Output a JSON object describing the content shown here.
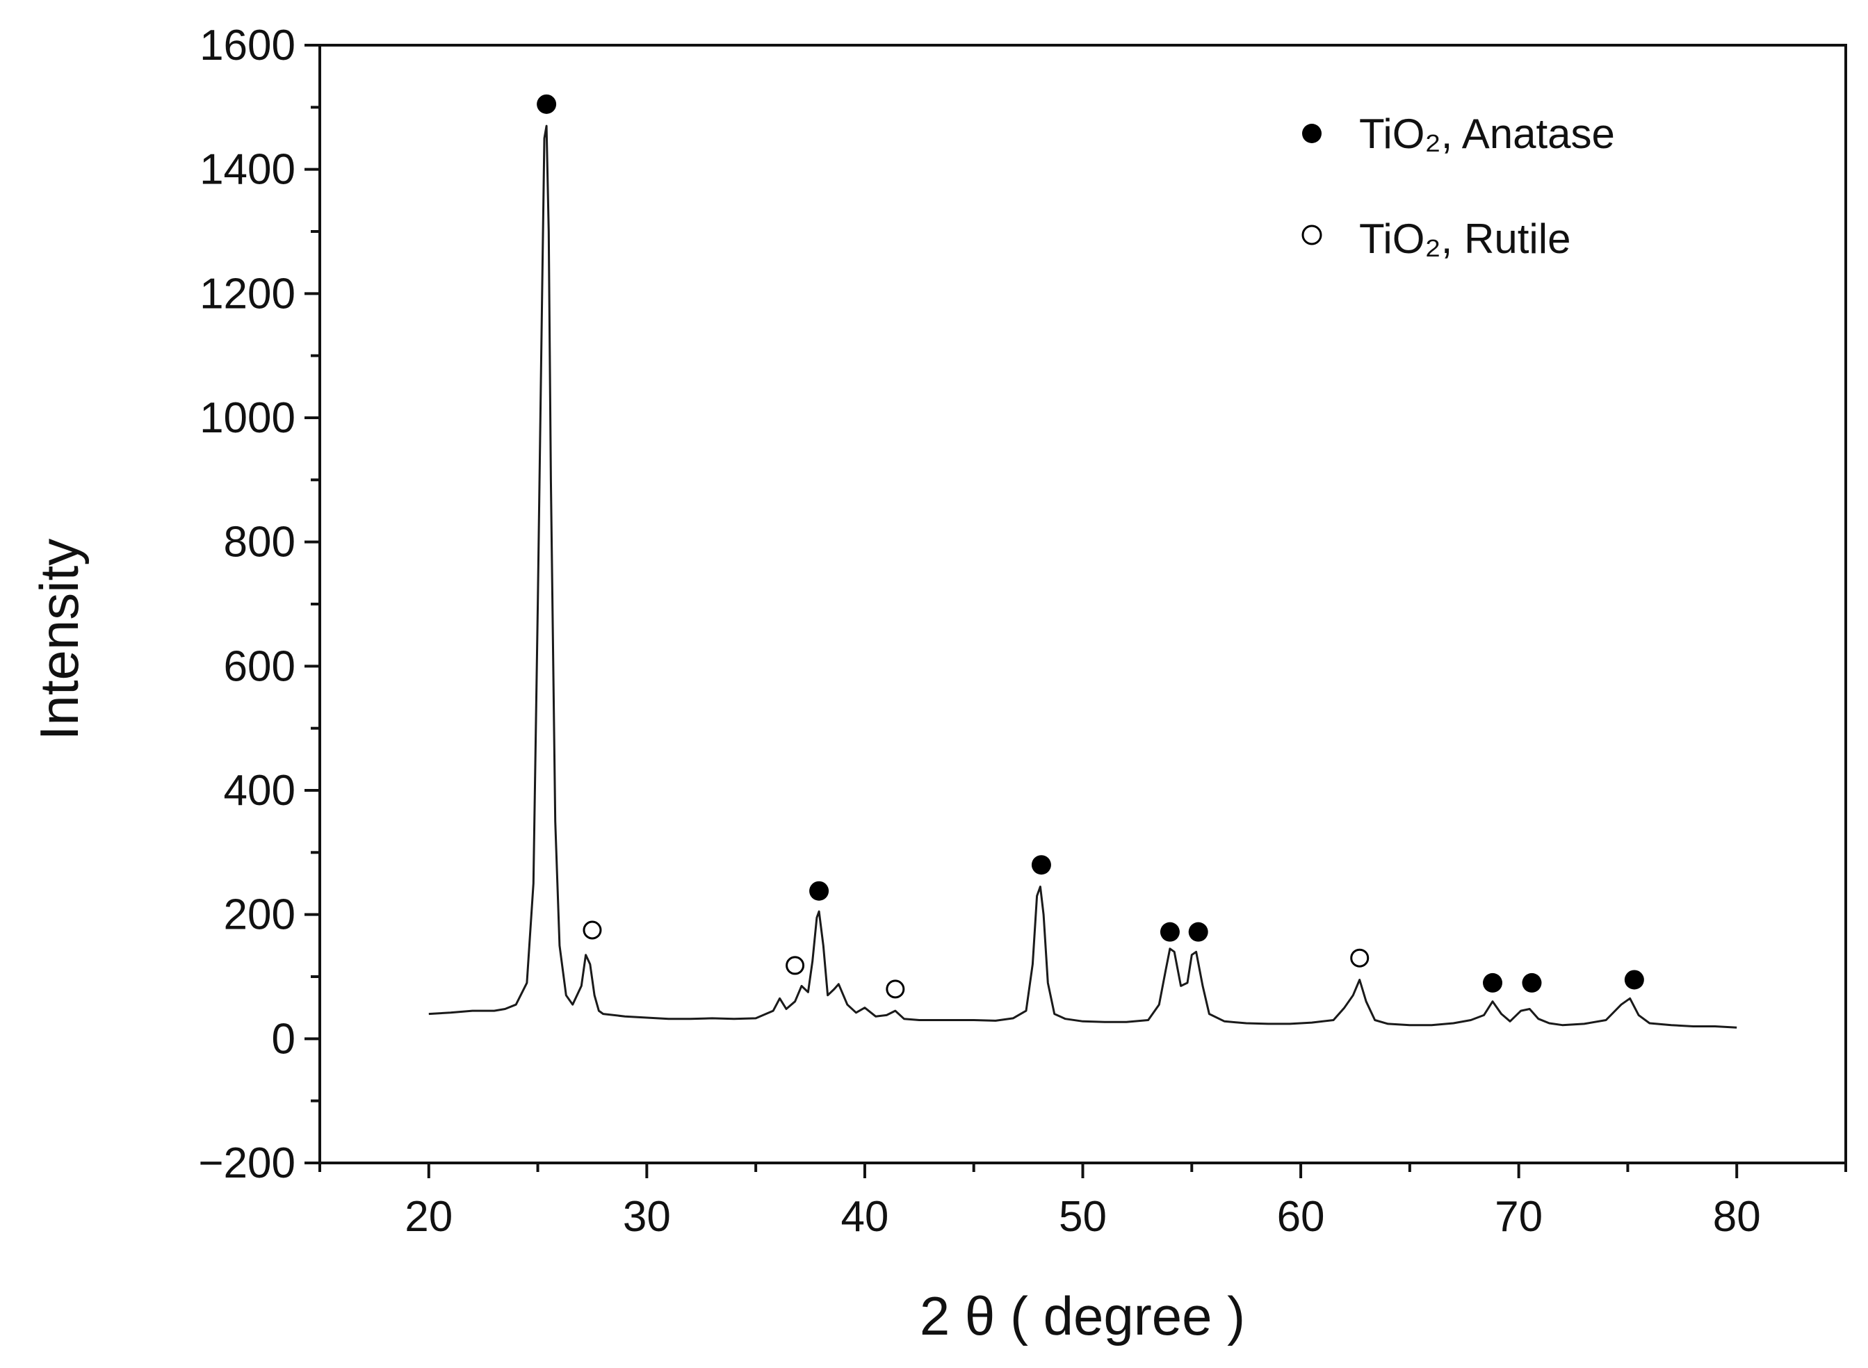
{
  "chart_data": {
    "type": "line",
    "title": "",
    "xlabel": "2 θ ( degree )",
    "ylabel": "Intensity",
    "xlim": [
      15,
      85
    ],
    "ylim": [
      -200,
      1600
    ],
    "x_ticks": [
      20,
      30,
      40,
      50,
      60,
      70,
      80
    ],
    "x_tick_labels": [
      "20",
      "30",
      "40",
      "50",
      "60",
      "70",
      "80"
    ],
    "y_ticks": [
      -200,
      0,
      200,
      400,
      600,
      800,
      1000,
      1200,
      1400,
      1600
    ],
    "y_tick_labels": [
      "−200",
      "0",
      "200",
      "400",
      "600",
      "800",
      "1000",
      "1200",
      "1400",
      "1600"
    ],
    "grid": false,
    "legend_position": "top-right",
    "colors": {
      "line": "#1a1a1a",
      "axis": "#111111",
      "marker": "#000000"
    },
    "series": [
      {
        "name": "",
        "x": [
          20,
          21,
          22,
          23,
          23.5,
          24,
          24.5,
          24.8,
          25,
          25.2,
          25.3,
          25.4,
          25.5,
          25.6,
          25.8,
          26,
          26.3,
          26.6,
          27,
          27.2,
          27.4,
          27.6,
          27.8,
          28,
          29,
          30,
          31,
          32,
          33,
          34,
          35,
          35.8,
          36.1,
          36.4,
          36.8,
          37.1,
          37.4,
          37.6,
          37.8,
          37.9,
          38.1,
          38.3,
          38.6,
          38.8,
          39.2,
          39.6,
          40,
          40.5,
          41,
          41.4,
          41.8,
          42.5,
          43,
          44,
          45,
          46,
          46.8,
          47.4,
          47.7,
          47.9,
          48.05,
          48.2,
          48.4,
          48.7,
          49.2,
          50,
          51,
          52,
          53,
          53.5,
          53.8,
          54,
          54.2,
          54.5,
          54.8,
          55,
          55.2,
          55.5,
          55.8,
          56.5,
          57.5,
          58.5,
          59.5,
          60.5,
          61.5,
          62,
          62.4,
          62.7,
          63,
          63.4,
          64,
          65,
          66,
          67,
          67.8,
          68.4,
          68.8,
          69.2,
          69.6,
          70.1,
          70.5,
          70.9,
          71.4,
          72,
          73,
          74,
          74.7,
          75.1,
          75.5,
          76,
          77,
          78,
          79,
          80
        ],
        "y": [
          40,
          42,
          45,
          45,
          48,
          55,
          90,
          250,
          700,
          1200,
          1450,
          1470,
          1300,
          900,
          350,
          150,
          70,
          55,
          85,
          135,
          120,
          70,
          45,
          40,
          36,
          34,
          32,
          32,
          33,
          32,
          33,
          45,
          65,
          48,
          60,
          85,
          75,
          125,
          195,
          205,
          150,
          70,
          80,
          88,
          55,
          42,
          50,
          36,
          38,
          45,
          32,
          30,
          30,
          30,
          30,
          29,
          33,
          45,
          120,
          230,
          245,
          200,
          90,
          40,
          32,
          28,
          27,
          27,
          30,
          55,
          110,
          145,
          140,
          85,
          90,
          135,
          140,
          85,
          40,
          28,
          25,
          24,
          24,
          26,
          30,
          50,
          70,
          95,
          60,
          30,
          24,
          22,
          22,
          25,
          30,
          38,
          60,
          40,
          28,
          45,
          48,
          32,
          25,
          22,
          24,
          30,
          55,
          65,
          38,
          25,
          22,
          20,
          20,
          18
        ]
      }
    ],
    "annotations": {
      "anatase_peaks": [
        {
          "x": 25.4,
          "y": 1505
        },
        {
          "x": 37.9,
          "y": 238
        },
        {
          "x": 48.1,
          "y": 280
        },
        {
          "x": 54.0,
          "y": 172
        },
        {
          "x": 55.3,
          "y": 172
        },
        {
          "x": 68.8,
          "y": 90
        },
        {
          "x": 70.6,
          "y": 90
        },
        {
          "x": 75.3,
          "y": 95
        }
      ],
      "rutile_peaks": [
        {
          "x": 27.5,
          "y": 175
        },
        {
          "x": 36.8,
          "y": 118
        },
        {
          "x": 41.4,
          "y": 80
        },
        {
          "x": 62.7,
          "y": 130
        }
      ]
    },
    "legend": [
      {
        "marker": "filled-circle",
        "label": "TiO₂, Anatase"
      },
      {
        "marker": "open-circle",
        "label": "TiO₂, Rutile"
      }
    ]
  }
}
